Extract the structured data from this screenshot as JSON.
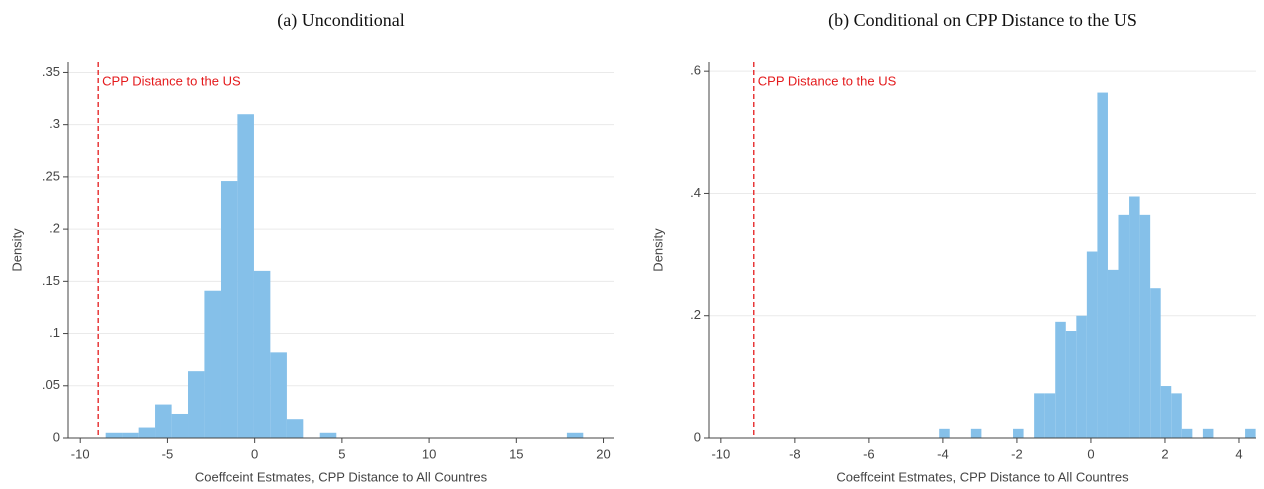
{
  "chart_data": [
    {
      "type": "histogram",
      "title": "(a) Unconditional",
      "xlabel": "Coeffceint Estmates, CPP Distance to All Countres",
      "ylabel": "Density",
      "bins": [
        -8.54,
        -7.6,
        -6.65,
        -5.71,
        -4.76,
        -3.82,
        -2.88,
        -1.93,
        -0.99,
        -0.04,
        0.9,
        1.85,
        2.79,
        3.73,
        4.68,
        5.62,
        6.57,
        7.51,
        8.46,
        9.4,
        10.34,
        11.29,
        12.23,
        13.18,
        14.12,
        15.06,
        16.01,
        16.95,
        17.9,
        18.84
      ],
      "values": [
        0.005,
        0.005,
        0.01,
        0.032,
        0.023,
        0.064,
        0.141,
        0.246,
        0.31,
        0.16,
        0.082,
        0.018,
        0,
        0.005,
        0,
        0,
        0,
        0,
        0,
        0,
        0,
        0,
        0,
        0,
        0,
        0,
        0,
        0,
        0.005
      ],
      "color": "#85c0e9",
      "xlim": [
        -10.7,
        20.6
      ],
      "xticks": [
        -10,
        -5,
        0,
        5,
        10,
        15,
        20
      ],
      "ylim": [
        0,
        0.36
      ],
      "yticks": [
        0,
        {
          "value": 0.05,
          "label": ".05"
        },
        {
          "value": 0.1,
          "label": ".1"
        },
        {
          "value": 0.15,
          "label": ".15"
        },
        {
          "value": 0.2,
          "label": ".2"
        },
        {
          "value": 0.25,
          "label": ".25"
        },
        {
          "value": 0.3,
          "label": ".3"
        },
        {
          "value": 0.35,
          "label": ".35"
        }
      ],
      "grid": true,
      "annotations": [
        {
          "text": "CPP Distance to the US",
          "x": -8.97,
          "color": "#e41a1c"
        }
      ]
    },
    {
      "type": "histogram",
      "title": "(b) Conditional on CPP Distance to the US",
      "xlabel": "Coeffceint Estmates, CPP Distance to All Countres",
      "ylabel": "Density",
      "bins": [
        -4.1,
        -3.815,
        -3.53,
        -3.245,
        -2.96,
        -2.675,
        -2.39,
        -2.105,
        -1.82,
        -1.535,
        -1.25,
        -0.965,
        -0.68,
        -0.395,
        -0.11,
        0.175,
        0.46,
        0.745,
        1.03,
        1.315,
        1.6,
        1.885,
        2.17,
        2.455,
        2.74,
        3.025,
        3.31,
        3.595,
        3.88,
        4.165,
        4.45
      ],
      "values": [
        0.015,
        0,
        0,
        0.015,
        0,
        0,
        0,
        0.015,
        0,
        0.073,
        0.073,
        0.19,
        0.175,
        0.2,
        0.305,
        0.565,
        0.275,
        0.365,
        0.395,
        0.365,
        0.245,
        0.085,
        0.073,
        0.015,
        0,
        0.015,
        0,
        0,
        0,
        0.015
      ],
      "color": "#85c0e9",
      "xlim": [
        -10.32,
        4.46
      ],
      "xticks": [
        -10,
        -8,
        -6,
        -4,
        -2,
        0,
        2,
        4
      ],
      "ylim": [
        0,
        0.615
      ],
      "yticks": [
        0,
        {
          "value": 0.2,
          "label": ".2"
        },
        {
          "value": 0.4,
          "label": ".4"
        },
        {
          "value": 0.6,
          "label": ".6"
        }
      ],
      "grid": true,
      "annotations": [
        {
          "text": "CPP Distance to the US",
          "x": -9.11,
          "color": "#e41a1c"
        }
      ]
    }
  ]
}
